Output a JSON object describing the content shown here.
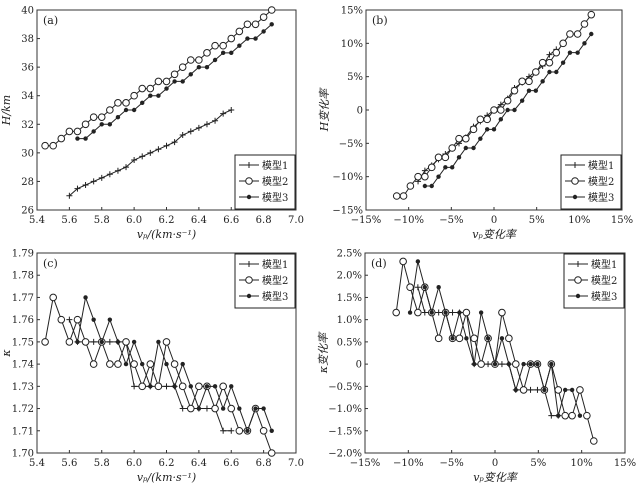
{
  "legend_labels": [
    "模型1",
    "模型2",
    "模型3"
  ],
  "chart_data": [
    {
      "type": "line",
      "panel_label": "(a)",
      "xlabel": "vₚ/(km·s⁻¹)",
      "ylabel": "H/km",
      "xlim": [
        5.4,
        7.0
      ],
      "ylim": [
        26,
        40
      ],
      "xticks": [
        5.4,
        5.6,
        5.8,
        6.0,
        6.2,
        6.4,
        6.6,
        6.8,
        7.0
      ],
      "xtick_labels": [
        "5.4",
        "5.6",
        "5.8",
        "6.0",
        "6.2",
        "6.4",
        "6.6",
        "6.8",
        "7.0"
      ],
      "yticks": [
        26,
        28,
        30,
        32,
        34,
        36,
        38,
        40
      ],
      "ytick_labels": [
        "26",
        "28",
        "30",
        "32",
        "34",
        "36",
        "38",
        "40"
      ],
      "legend": "bottom-right",
      "series": [
        {
          "name": "模型1",
          "marker": "plus",
          "x": [
            5.6,
            5.65,
            5.7,
            5.75,
            5.8,
            5.85,
            5.9,
            5.95,
            6.0,
            6.05,
            6.1,
            6.15,
            6.2,
            6.25,
            6.3,
            6.35,
            6.4,
            6.45,
            6.5,
            6.55,
            6.6
          ],
          "y": [
            27,
            27.5,
            27.75,
            28,
            28.25,
            28.5,
            28.75,
            29,
            29.5,
            29.75,
            30,
            30.25,
            30.5,
            30.75,
            31.25,
            31.5,
            31.75,
            32,
            32.25,
            32.75,
            33
          ]
        },
        {
          "name": "模型2",
          "marker": "circle",
          "x": [
            5.45,
            5.5,
            5.55,
            5.6,
            5.65,
            5.7,
            5.75,
            5.8,
            5.85,
            5.9,
            5.95,
            6.0,
            6.05,
            6.1,
            6.15,
            6.2,
            6.25,
            6.3,
            6.35,
            6.4,
            6.45,
            6.5,
            6.55,
            6.6,
            6.65,
            6.7,
            6.75,
            6.8,
            6.85
          ],
          "y": [
            30.5,
            30.5,
            31,
            31.5,
            31.5,
            32,
            32.5,
            32.5,
            33,
            33.5,
            33.5,
            34,
            34.5,
            34.5,
            35,
            35,
            35.5,
            36,
            36.5,
            36.5,
            37,
            37.5,
            37.5,
            38,
            38.5,
            39,
            39,
            39.5,
            40
          ]
        },
        {
          "name": "模型3",
          "marker": "dot",
          "x": [
            5.65,
            5.7,
            5.75,
            5.8,
            5.85,
            5.9,
            5.95,
            6.0,
            6.05,
            6.1,
            6.15,
            6.2,
            6.25,
            6.3,
            6.35,
            6.4,
            6.45,
            6.5,
            6.55,
            6.6,
            6.65,
            6.7,
            6.75,
            6.8,
            6.85
          ],
          "y": [
            31,
            31,
            31.5,
            32,
            32,
            32.5,
            33,
            33,
            33.5,
            34,
            34,
            34.5,
            35,
            35,
            35.5,
            36,
            36,
            36.5,
            37,
            37,
            37.5,
            38,
            38,
            38.5,
            39
          ]
        }
      ]
    },
    {
      "type": "line",
      "panel_label": "(b)",
      "xlabel": "vₚ变化率",
      "ylabel": "H变化率",
      "xlim": [
        -15,
        15
      ],
      "ylim": [
        -15,
        15
      ],
      "xticks": [
        -15,
        -10,
        -5,
        0,
        5,
        10,
        15
      ],
      "xtick_labels": [
        "−15%",
        "−10%",
        "−5%",
        "0",
        "5%",
        "10%",
        "15%"
      ],
      "yticks": [
        -15,
        -10,
        -5,
        0,
        5,
        10,
        15
      ],
      "ytick_labels": [
        "−15%",
        "−10%",
        "−5%",
        "0",
        "5%",
        "10%",
        "15%"
      ],
      "legend": "bottom-right",
      "series": [
        {
          "name": "模型1",
          "marker": "plus",
          "x": [
            -8.9,
            -8.1,
            -7.3,
            -6.5,
            -5.7,
            -4.9,
            -4.1,
            -3.3,
            -2.4,
            -1.6,
            -0.8,
            0,
            0.8,
            1.6,
            2.4,
            3.3,
            4.1,
            4.9,
            5.7,
            6.5,
            7.3
          ],
          "y": [
            -10.7,
            -9.1,
            -8.3,
            -7.4,
            -6.6,
            -5.8,
            -5.0,
            -4.1,
            -2.5,
            -1.7,
            -0.8,
            0,
            0.8,
            1.7,
            3.3,
            4.1,
            5.0,
            5.8,
            6.6,
            8.3,
            9.1
          ]
        },
        {
          "name": "模型2",
          "marker": "circle",
          "x": [
            -11.4,
            -10.6,
            -9.8,
            -8.9,
            -8.1,
            -7.3,
            -6.5,
            -5.7,
            -4.9,
            -4.1,
            -3.3,
            -2.4,
            -1.6,
            -0.8,
            0,
            0.8,
            1.6,
            2.4,
            3.3,
            4.1,
            4.9,
            5.7,
            6.5,
            7.3,
            8.1,
            8.9,
            9.8,
            10.6,
            11.4
          ],
          "y": [
            -12.9,
            -12.9,
            -11.4,
            -10,
            -10,
            -8.6,
            -7.1,
            -7.1,
            -5.7,
            -4.3,
            -4.3,
            -2.9,
            -1.4,
            -1.4,
            0,
            0,
            1.4,
            2.9,
            4.3,
            4.3,
            5.7,
            7.1,
            7.1,
            8.6,
            10,
            11.4,
            11.4,
            12.9,
            14.3
          ]
        },
        {
          "name": "模型3",
          "marker": "dot",
          "x": [
            -8.1,
            -7.3,
            -6.5,
            -5.7,
            -4.9,
            -4.1,
            -3.3,
            -2.4,
            -1.6,
            -0.8,
            0,
            0.8,
            1.6,
            2.4,
            3.3,
            4.1,
            4.9,
            5.7,
            6.5,
            7.3,
            8.1,
            8.9,
            9.8,
            10.6,
            11.4
          ],
          "y": [
            -11.4,
            -11.4,
            -10,
            -8.6,
            -8.6,
            -7.1,
            -5.7,
            -5.7,
            -4.3,
            -2.9,
            -2.9,
            -1.4,
            0,
            0,
            1.4,
            2.9,
            2.9,
            4.3,
            5.7,
            5.7,
            7.1,
            8.6,
            8.6,
            10,
            11.4
          ]
        }
      ]
    },
    {
      "type": "line",
      "panel_label": "(c)",
      "xlabel": "vₚ/(km·s⁻¹)",
      "ylabel": "κ",
      "xlim": [
        5.4,
        7.0
      ],
      "ylim": [
        1.7,
        1.79
      ],
      "xticks": [
        5.4,
        5.6,
        5.8,
        6.0,
        6.2,
        6.4,
        6.6,
        6.8,
        7.0
      ],
      "xtick_labels": [
        "5.4",
        "5.6",
        "5.8",
        "6.0",
        "6.2",
        "6.4",
        "6.6",
        "6.8",
        "7.0"
      ],
      "yticks": [
        1.7,
        1.71,
        1.72,
        1.73,
        1.74,
        1.75,
        1.76,
        1.77,
        1.78,
        1.79
      ],
      "ytick_labels": [
        "1.70",
        "1.71",
        "1.72",
        "1.73",
        "1.74",
        "1.75",
        "1.76",
        "1.77",
        "1.78",
        "1.79"
      ],
      "legend": "top-right",
      "series": [
        {
          "name": "模型1",
          "marker": "plus",
          "x": [
            5.6,
            5.65,
            5.7,
            5.75,
            5.8,
            5.85,
            5.9,
            5.95,
            6.0,
            6.05,
            6.1,
            6.15,
            6.2,
            6.25,
            6.3,
            6.35,
            6.4,
            6.45,
            6.5,
            6.55,
            6.6
          ],
          "y": [
            1.76,
            1.75,
            1.75,
            1.75,
            1.75,
            1.75,
            1.75,
            1.75,
            1.73,
            1.73,
            1.73,
            1.73,
            1.73,
            1.73,
            1.72,
            1.72,
            1.72,
            1.72,
            1.72,
            1.71,
            1.71
          ]
        },
        {
          "name": "模型2",
          "marker": "circle",
          "x": [
            5.45,
            5.5,
            5.55,
            5.6,
            5.65,
            5.7,
            5.75,
            5.8,
            5.85,
            5.9,
            5.95,
            6.0,
            6.05,
            6.1,
            6.15,
            6.2,
            6.25,
            6.3,
            6.35,
            6.4,
            6.45,
            6.5,
            6.55,
            6.6,
            6.65,
            6.7,
            6.75,
            6.8,
            6.85
          ],
          "y": [
            1.75,
            1.77,
            1.76,
            1.75,
            1.76,
            1.75,
            1.74,
            1.75,
            1.74,
            1.74,
            1.75,
            1.74,
            1.73,
            1.74,
            1.73,
            1.75,
            1.74,
            1.73,
            1.72,
            1.73,
            1.73,
            1.72,
            1.73,
            1.72,
            1.71,
            1.71,
            1.72,
            1.71,
            1.7
          ]
        },
        {
          "name": "模型3",
          "marker": "dot",
          "x": [
            5.65,
            5.7,
            5.75,
            5.8,
            5.85,
            5.9,
            5.95,
            6.0,
            6.05,
            6.1,
            6.15,
            6.2,
            6.25,
            6.3,
            6.35,
            6.4,
            6.45,
            6.5,
            6.55,
            6.6,
            6.65,
            6.7,
            6.75,
            6.8,
            6.85
          ],
          "y": [
            1.75,
            1.77,
            1.76,
            1.75,
            1.76,
            1.75,
            1.74,
            1.75,
            1.74,
            1.73,
            1.75,
            1.74,
            1.73,
            1.74,
            1.73,
            1.72,
            1.73,
            1.73,
            1.72,
            1.73,
            1.72,
            1.71,
            1.72,
            1.72,
            1.71
          ]
        }
      ]
    },
    {
      "type": "line",
      "panel_label": "(d)",
      "xlabel": "vₚ变化率",
      "ylabel": "κ变化率",
      "xlim": [
        -15,
        15
      ],
      "ylim": [
        -2.0,
        2.5
      ],
      "xticks": [
        -15,
        -10,
        -5,
        0,
        5,
        10,
        15
      ],
      "xtick_labels": [
        "−15%",
        "−10%",
        "−5%",
        "0",
        "5%",
        "10%",
        "15%"
      ],
      "yticks": [
        -2.0,
        -1.5,
        -1.0,
        -0.5,
        0,
        0.5,
        1.0,
        1.5,
        2.0,
        2.5
      ],
      "ytick_labels": [
        "−2.0%",
        "−1.5%",
        "−1.0%",
        "−0.5%",
        "0",
        "0.5%",
        "1.0%",
        "1.5%",
        "2.0%",
        "2.5%"
      ],
      "legend": "top-right",
      "series": [
        {
          "name": "模型1",
          "marker": "plus",
          "x": [
            -8.9,
            -8.1,
            -7.3,
            -6.5,
            -5.7,
            -4.9,
            -4.1,
            -3.3,
            -2.4,
            -1.6,
            -0.8,
            0,
            0.8,
            1.6,
            2.4,
            3.3,
            4.1,
            4.9,
            5.7,
            6.5,
            7.3
          ],
          "y": [
            1.73,
            1.16,
            1.16,
            1.16,
            1.16,
            1.16,
            1.16,
            1.16,
            0,
            0,
            0,
            0,
            0,
            0,
            -0.58,
            -0.58,
            -0.58,
            -0.58,
            -0.58,
            -1.16,
            -1.16
          ]
        },
        {
          "name": "模型2",
          "marker": "circle",
          "x": [
            -11.4,
            -10.6,
            -9.8,
            -8.9,
            -8.1,
            -7.3,
            -6.5,
            -5.7,
            -4.9,
            -4.1,
            -3.3,
            -2.4,
            -1.6,
            -0.8,
            0,
            0.8,
            1.6,
            2.4,
            3.3,
            4.1,
            4.9,
            5.7,
            6.5,
            7.3,
            8.1,
            8.9,
            9.8,
            10.6,
            11.4
          ],
          "y": [
            1.16,
            2.31,
            1.73,
            1.16,
            1.73,
            1.16,
            0.58,
            1.16,
            0.58,
            0.58,
            1.16,
            0.58,
            0,
            0.58,
            0,
            1.16,
            0.58,
            0,
            -0.58,
            0,
            0,
            -0.58,
            0,
            -0.58,
            -1.16,
            -1.16,
            -0.58,
            -1.16,
            -1.73
          ]
        },
        {
          "name": "模型3",
          "marker": "dot",
          "x": [
            -9.8,
            -8.9,
            -8.1,
            -7.3,
            -6.5,
            -5.7,
            -4.9,
            -4.1,
            -3.3,
            -2.4,
            -1.6,
            -0.8,
            0,
            0.8,
            1.6,
            2.4,
            3.3,
            4.1,
            4.9,
            5.7,
            6.5,
            7.3,
            8.1,
            8.9,
            9.8
          ],
          "y": [
            1.16,
            2.31,
            1.73,
            1.16,
            1.73,
            1.16,
            0.58,
            1.16,
            0.58,
            0,
            1.16,
            0.58,
            0,
            0.58,
            0,
            -0.58,
            0,
            0,
            0,
            -0.58,
            0,
            -1.16,
            -0.58,
            -0.58,
            -1.16
          ]
        }
      ]
    }
  ]
}
